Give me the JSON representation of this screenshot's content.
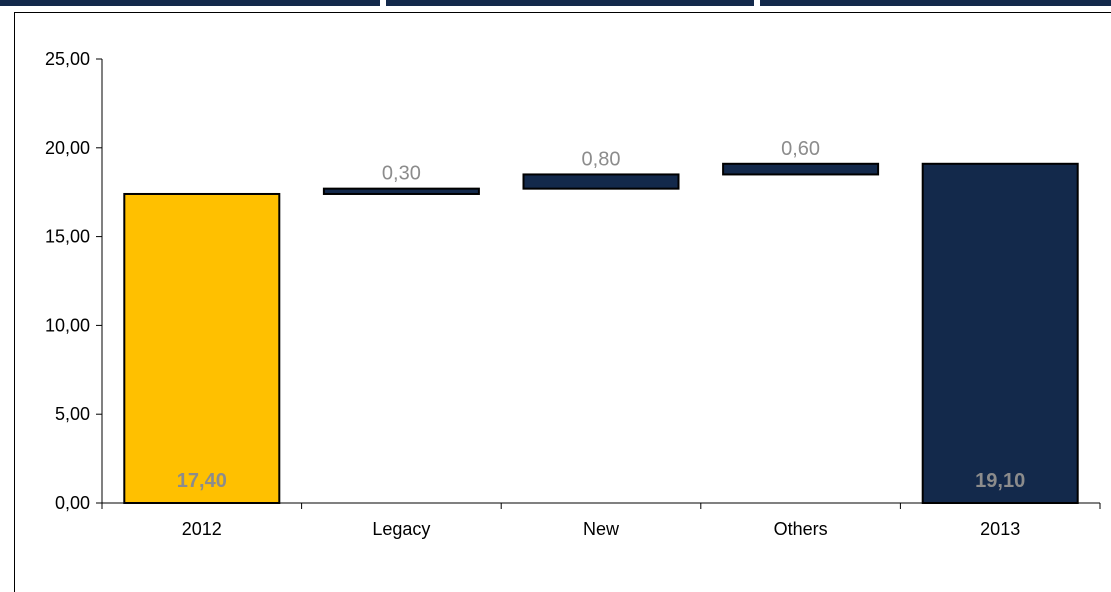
{
  "chart_data": {
    "type": "bar",
    "subtype": "waterfall",
    "categories": [
      "2012",
      "Legacy",
      "New",
      "Others",
      "2013"
    ],
    "steps": [
      {
        "category": "2012",
        "kind": "total",
        "start": 0,
        "end": 17.4,
        "label": "17,40"
      },
      {
        "category": "Legacy",
        "kind": "delta",
        "start": 17.4,
        "end": 17.7,
        "label": "0,30"
      },
      {
        "category": "New",
        "kind": "delta",
        "start": 17.7,
        "end": 18.5,
        "label": "0,80"
      },
      {
        "category": "Others",
        "kind": "delta",
        "start": 18.5,
        "end": 19.1,
        "label": "0,60"
      },
      {
        "category": "2013",
        "kind": "total",
        "start": 0,
        "end": 19.1,
        "label": "19,10"
      }
    ],
    "ylim": [
      0,
      25
    ],
    "yticks": [
      "0,00",
      "5,00",
      "10,00",
      "15,00",
      "20,00",
      "25,00"
    ],
    "ytick_values": [
      0,
      5,
      10,
      15,
      20,
      25
    ],
    "colors": {
      "2012": "#ffc000",
      "delta": "#13294b",
      "2013": "#13294b",
      "outline": "#000000"
    },
    "grid": false,
    "legend": "none"
  }
}
